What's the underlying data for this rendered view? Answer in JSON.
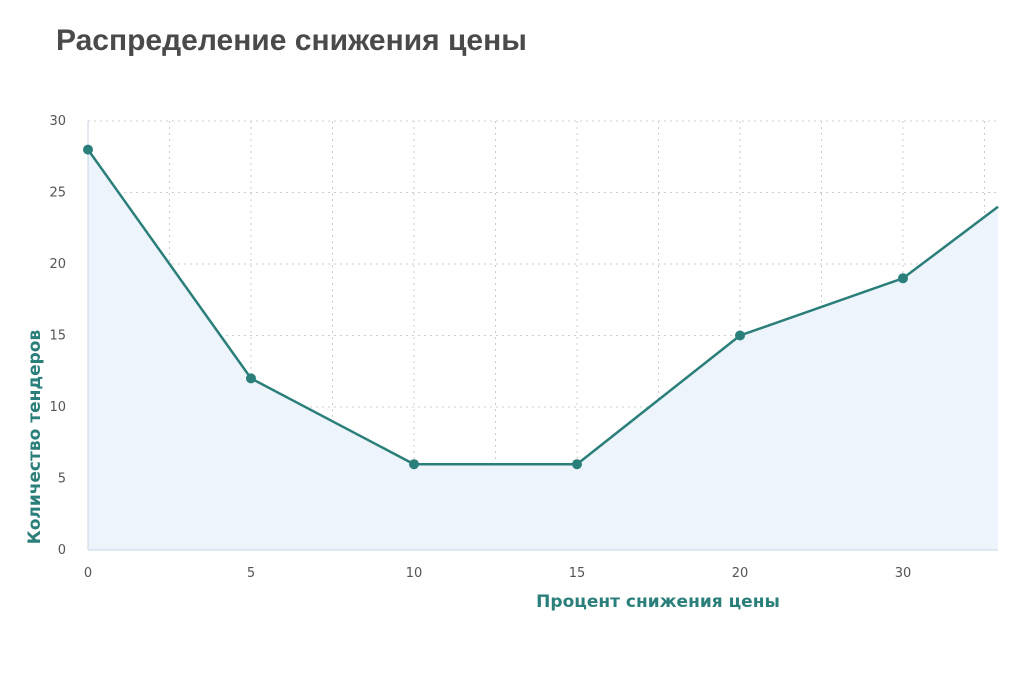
{
  "chart_data": {
    "type": "line",
    "title": "Распределение снижения цены",
    "xlabel": "Процент снижения цены",
    "ylabel": "Количество тендеров",
    "categories": [
      "0",
      "5",
      "10",
      "15",
      "20",
      "30"
    ],
    "series": [
      {
        "values": [
          28,
          12,
          6,
          6,
          15,
          19
        ]
      }
    ],
    "trailing_value": 24,
    "ylim": [
      0,
      30
    ],
    "yticks": [
      "0",
      "5",
      "10",
      "15",
      "20",
      "25",
      "30"
    ],
    "grid": true,
    "legend": "none",
    "colors": {
      "line": "#2a7f7a",
      "marker": "#2a7f7a",
      "area": "#eef4fc",
      "grid": "#cccccc",
      "axis_title": "#2a7f7a",
      "title": "#4a4a4a"
    }
  }
}
